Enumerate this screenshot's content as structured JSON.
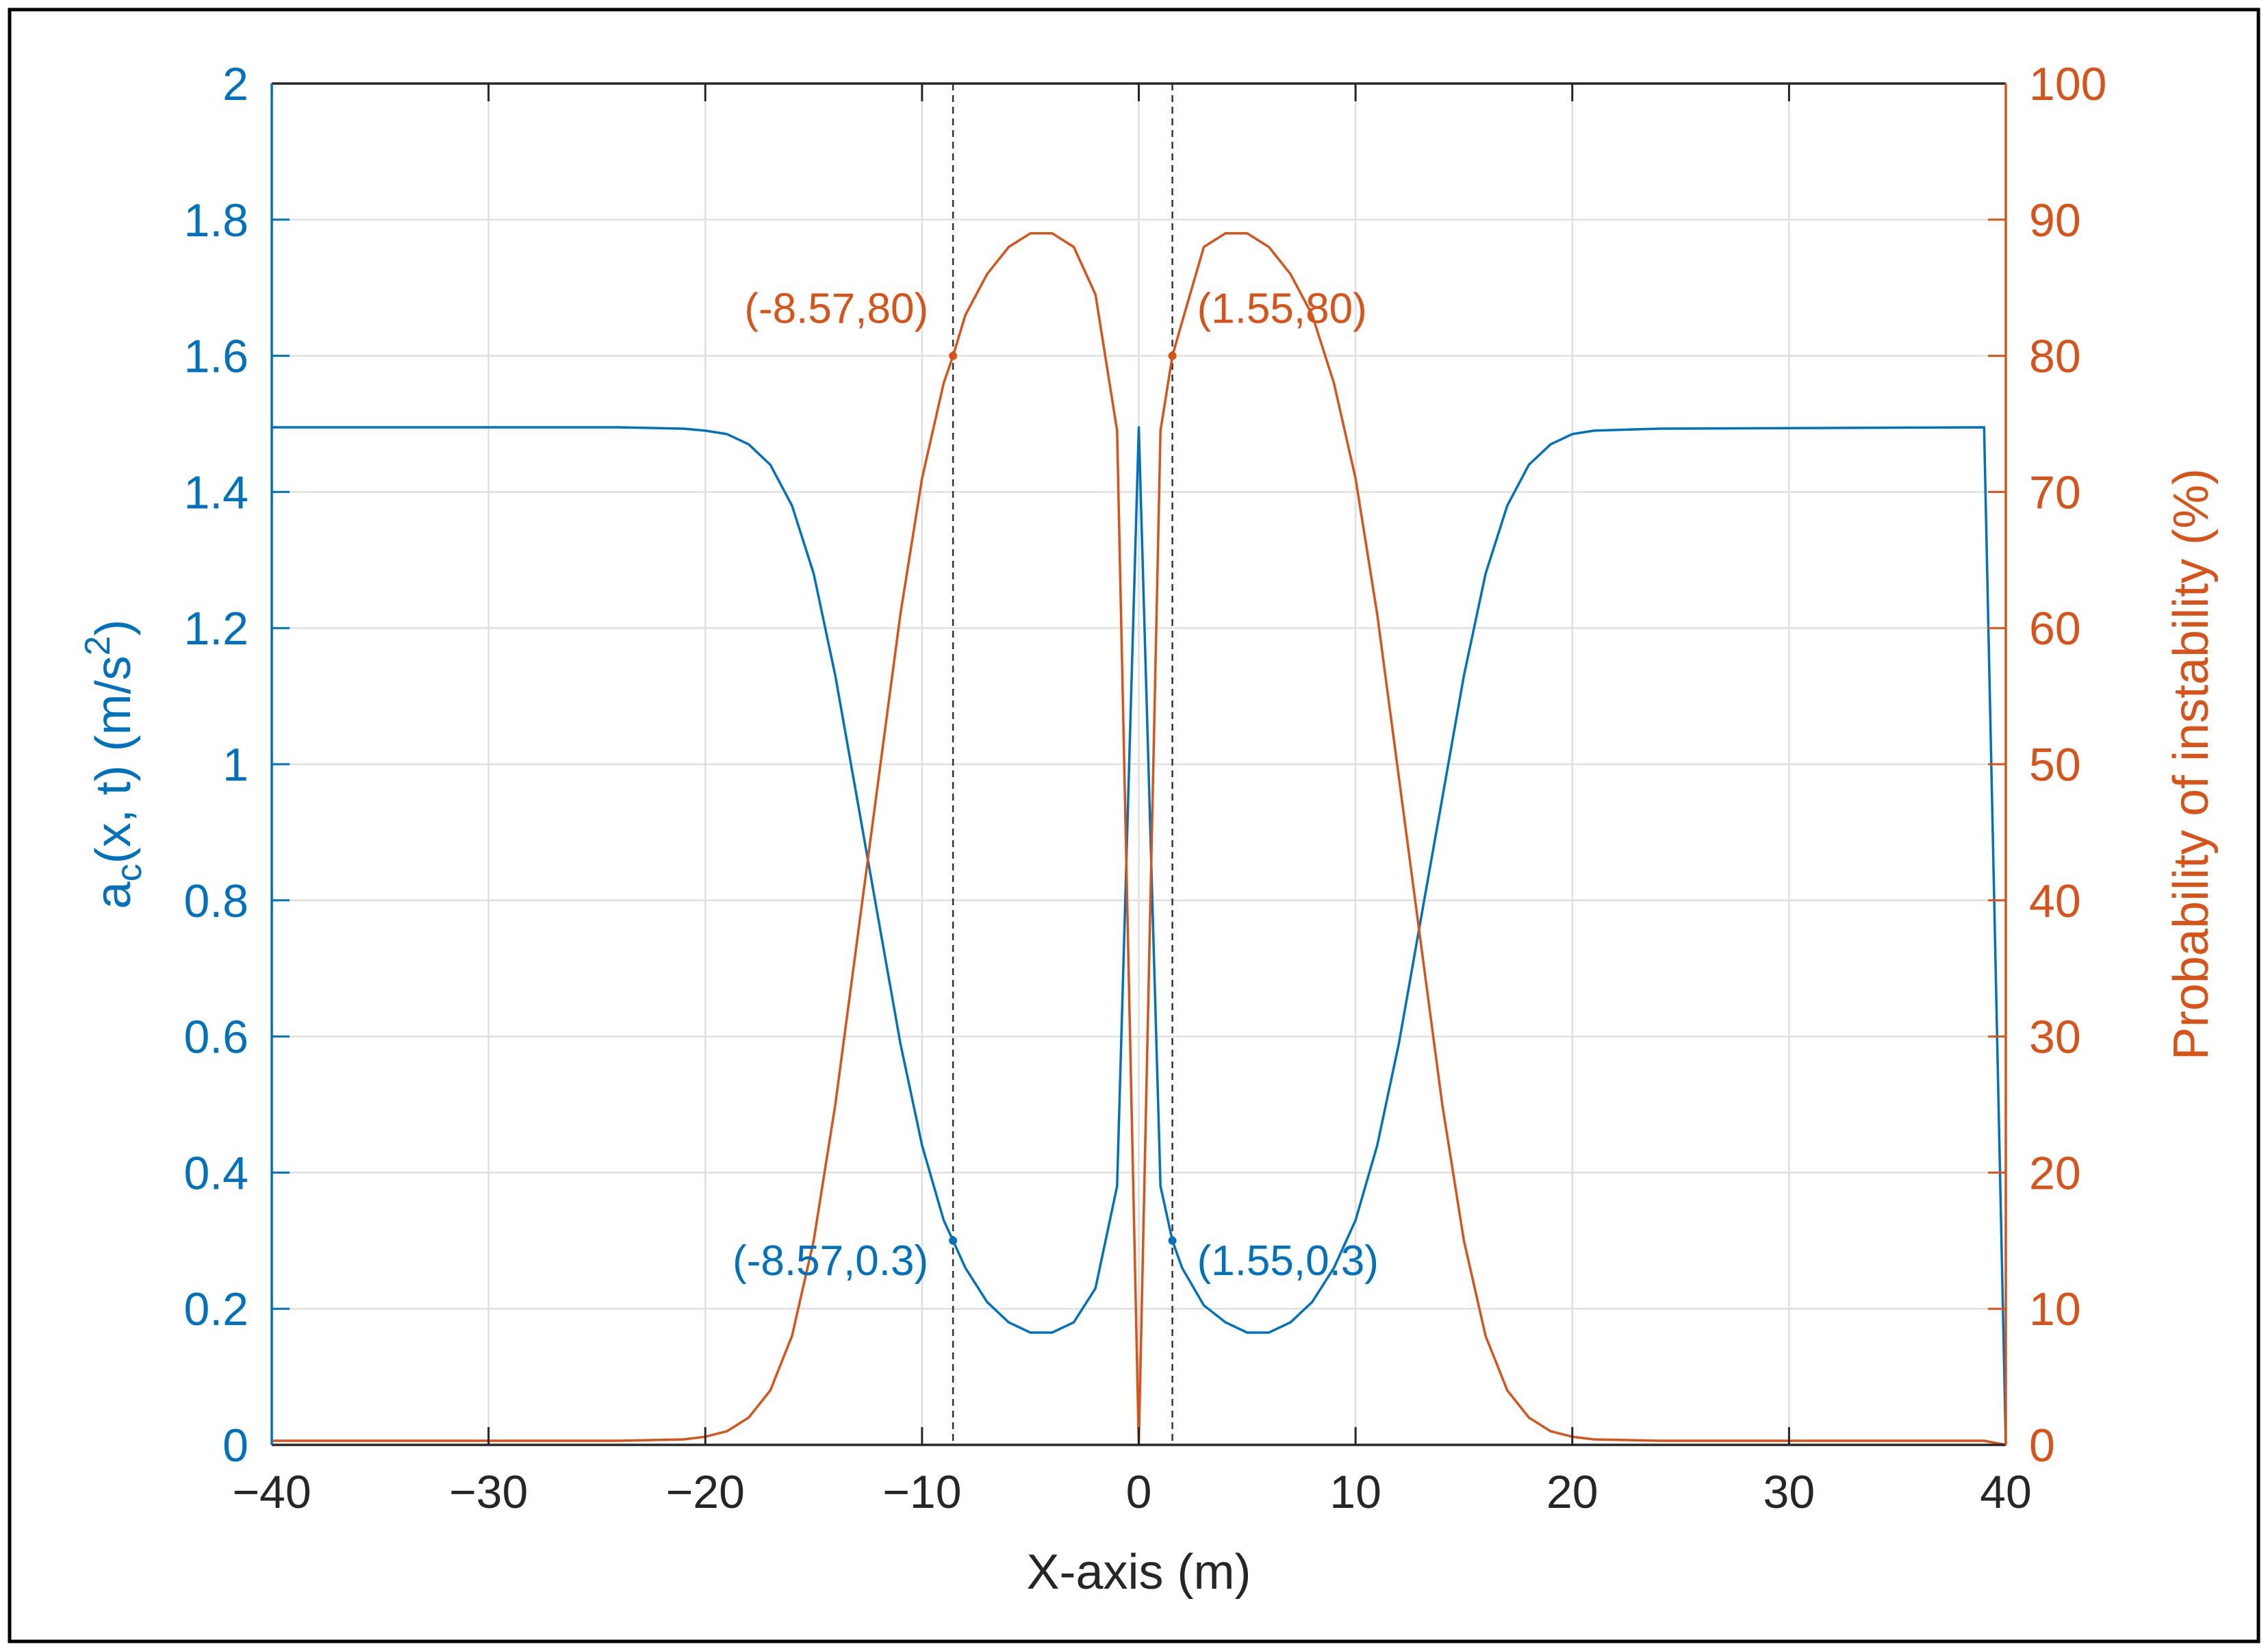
{
  "chart_data": {
    "type": "line",
    "x_axis": {
      "label": "X-axis (m)",
      "range": [
        -40,
        40
      ],
      "ticks": [
        -40,
        -30,
        -20,
        -10,
        0,
        10,
        20,
        30,
        40
      ],
      "tick_labels": [
        "−40",
        "−30",
        "−20",
        "−10",
        "0",
        "10",
        "20",
        "30",
        "40"
      ]
    },
    "y_left": {
      "label_main": "a",
      "label_sub": "c",
      "label_rest": "(x, t) (m/s",
      "label_sup": "2",
      "label_end": ")",
      "range": [
        0,
        2
      ],
      "ticks": [
        0,
        0.2,
        0.4,
        0.6,
        0.8,
        1,
        1.2,
        1.4,
        1.6,
        1.8,
        2
      ],
      "tick_labels": [
        "0",
        "0.2",
        "0.4",
        "0.6",
        "0.8",
        "1",
        "1.2",
        "1.4",
        "1.6",
        "1.8",
        "2"
      ],
      "color": "#0072bd"
    },
    "y_right": {
      "label": "Probability of instability (%)",
      "range": [
        0,
        100
      ],
      "ticks": [
        0,
        10,
        20,
        30,
        40,
        50,
        60,
        70,
        80,
        90,
        100
      ],
      "tick_labels": [
        "0",
        "10",
        "20",
        "30",
        "40",
        "50",
        "60",
        "70",
        "80",
        "90",
        "100"
      ],
      "color": "#d95319"
    },
    "grid": true,
    "series": [
      {
        "axis": "left",
        "color": "#0072bd",
        "x": [
          -40,
          -24,
          -21,
          -20,
          -19,
          -18,
          -17,
          -16,
          -15,
          -14,
          -13,
          -12,
          -11,
          -10,
          -9,
          -8.57,
          -8,
          -7,
          -6,
          -5,
          -4,
          -3,
          -2,
          -1,
          0,
          1,
          1.55,
          2,
          3,
          4,
          5,
          6,
          7,
          8,
          9,
          10,
          11,
          12,
          13,
          14,
          15,
          16,
          17,
          18,
          19,
          20,
          21,
          24,
          39,
          40
        ],
        "y": [
          1.495,
          1.495,
          1.493,
          1.49,
          1.485,
          1.47,
          1.44,
          1.38,
          1.28,
          1.13,
          0.95,
          0.77,
          0.59,
          0.44,
          0.33,
          0.3,
          0.26,
          0.21,
          0.18,
          0.165,
          0.165,
          0.18,
          0.23,
          0.38,
          1.495,
          0.38,
          0.3,
          0.26,
          0.205,
          0.18,
          0.165,
          0.165,
          0.18,
          0.21,
          0.26,
          0.33,
          0.44,
          0.59,
          0.77,
          0.95,
          1.13,
          1.28,
          1.38,
          1.44,
          1.47,
          1.485,
          1.49,
          1.493,
          1.495,
          0
        ]
      },
      {
        "axis": "right",
        "color": "#d95319",
        "x": [
          -40,
          -24,
          -21,
          -20,
          -19,
          -18,
          -17,
          -16,
          -15,
          -14,
          -13,
          -12,
          -11,
          -10,
          -9,
          -8.57,
          -8,
          -7,
          -6,
          -5,
          -4,
          -3,
          -2,
          -1,
          0,
          1,
          1.55,
          2,
          3,
          4,
          5,
          6,
          7,
          8,
          9,
          10,
          11,
          12,
          13,
          14,
          15,
          16,
          17,
          18,
          19,
          20,
          21,
          24,
          39,
          40
        ],
        "y": [
          0.3,
          0.3,
          0.4,
          0.6,
          1,
          2,
          4,
          8,
          15,
          25,
          37,
          49,
          61,
          71,
          78,
          80,
          83,
          86,
          88,
          89,
          89,
          88,
          84.5,
          74.5,
          0,
          74.5,
          80,
          82.5,
          88,
          89,
          89,
          88,
          86,
          83,
          78,
          71,
          61,
          49,
          37,
          25,
          15,
          8,
          4,
          2,
          1,
          0.6,
          0.4,
          0.3,
          0.3,
          0
        ]
      }
    ],
    "vertical_lines": [
      -8.57,
      1.55
    ],
    "annotations": [
      {
        "text": "(-8.57,80)",
        "x": -8.57,
        "y": 80,
        "axis": "right",
        "color": "#d95319",
        "anchor": "end"
      },
      {
        "text": "(1.55,80)",
        "x": 1.55,
        "y": 80,
        "axis": "right",
        "color": "#d95319",
        "anchor": "start"
      },
      {
        "text": "(-8.57,0.3)",
        "x": -8.57,
        "y": 0.3,
        "axis": "left",
        "color": "#0072bd",
        "anchor": "end"
      },
      {
        "text": "(1.55,0.3)",
        "x": 1.55,
        "y": 0.3,
        "axis": "left",
        "color": "#0072bd",
        "anchor": "start"
      }
    ]
  }
}
